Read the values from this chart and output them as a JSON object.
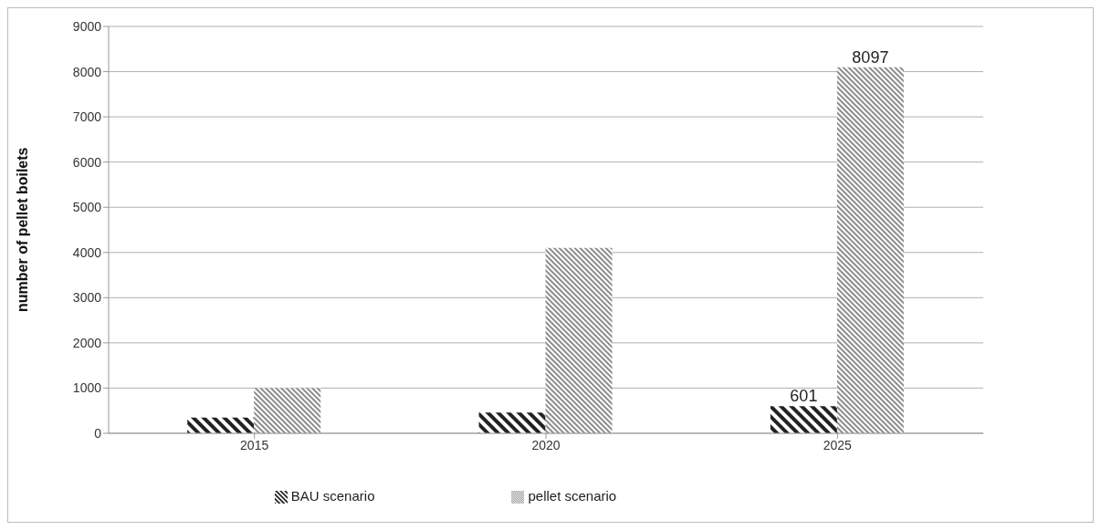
{
  "chart_data": {
    "type": "bar",
    "ylabel": "number of pellet boilets",
    "categories": [
      "2015",
      "2020",
      "2025"
    ],
    "series": [
      {
        "name": "BAU scenario",
        "color": "#222222",
        "values": [
          350,
          460,
          601
        ],
        "value_labels": [
          null,
          null,
          "601"
        ]
      },
      {
        "name": "pellet scenario",
        "color": "#8c8c8c",
        "values": [
          1000,
          4100,
          8097
        ],
        "value_labels": [
          null,
          null,
          "8097"
        ]
      }
    ],
    "ylim": [
      0,
      9000
    ],
    "yticks": [
      0,
      1000,
      2000,
      3000,
      4000,
      5000,
      6000,
      7000,
      8000,
      9000
    ],
    "grid": "y",
    "legend": "bottom"
  }
}
